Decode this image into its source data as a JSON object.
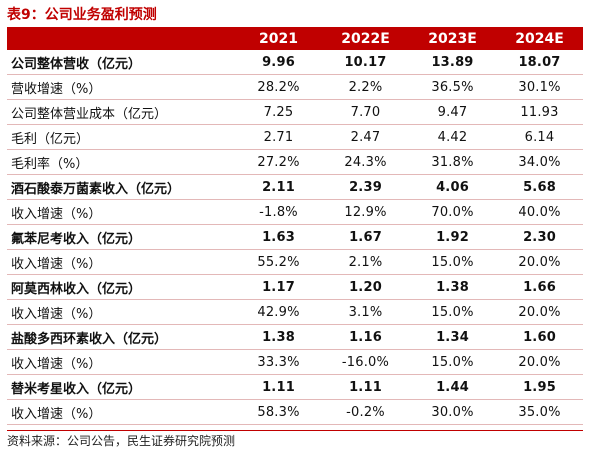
{
  "title": "表9：公司业务盈利预测",
  "header": [
    "",
    "2021",
    "2022E",
    "2023E",
    "2024E"
  ],
  "rows": [
    {
      "label": "公司整体营收（亿元）",
      "values": [
        "9.96",
        "10.17",
        "13.89",
        "18.07"
      ],
      "bold": true
    },
    {
      "label": "营收增速（%）",
      "values": [
        "28.2%",
        "2.2%",
        "36.5%",
        "30.1%"
      ],
      "bold": false
    },
    {
      "label": "公司整体营业成本（亿元）",
      "values": [
        "7.25",
        "7.70",
        "9.47",
        "11.93"
      ],
      "bold": false
    },
    {
      "label": "毛利（亿元）",
      "values": [
        "2.71",
        "2.47",
        "4.42",
        "6.14"
      ],
      "bold": false
    },
    {
      "label": "毛利率（%）",
      "values": [
        "27.2%",
        "24.3%",
        "31.8%",
        "34.0%"
      ],
      "bold": false
    },
    {
      "label": "酒石酸泰万菌素收入（亿元）",
      "values": [
        "2.11",
        "2.39",
        "4.06",
        "5.68"
      ],
      "bold": true
    },
    {
      "label": "收入增速（%）",
      "values": [
        "-1.8%",
        "12.9%",
        "70.0%",
        "40.0%"
      ],
      "bold": false
    },
    {
      "label": "氟苯尼考收入（亿元）",
      "values": [
        "1.63",
        "1.67",
        "1.92",
        "2.30"
      ],
      "bold": true
    },
    {
      "label": "收入增速（%）",
      "values": [
        "55.2%",
        "2.1%",
        "15.0%",
        "20.0%"
      ],
      "bold": false
    },
    {
      "label": "阿莫西林收入（亿元）",
      "values": [
        "1.17",
        "1.20",
        "1.38",
        "1.66"
      ],
      "bold": true
    },
    {
      "label": "收入增速（%）",
      "values": [
        "42.9%",
        "3.1%",
        "15.0%",
        "20.0%"
      ],
      "bold": false
    },
    {
      "label": "盐酸多西环素收入（亿元）",
      "values": [
        "1.38",
        "1.16",
        "1.34",
        "1.60"
      ],
      "bold": true
    },
    {
      "label": "收入增速（%）",
      "values": [
        "33.3%",
        "-16.0%",
        "15.0%",
        "20.0%"
      ],
      "bold": false
    },
    {
      "label": "替米考星收入（亿元）",
      "values": [
        "1.11",
        "1.11",
        "1.44",
        "1.95"
      ],
      "bold": true
    },
    {
      "label": "收入增速（%）",
      "values": [
        "58.3%",
        "-0.2%",
        "30.0%",
        "35.0%"
      ],
      "bold": false
    }
  ],
  "source": "资料来源：公司公告，民生证券研究院预测",
  "colors": {
    "accent": "#c00000",
    "header_text": "#ffffff"
  }
}
